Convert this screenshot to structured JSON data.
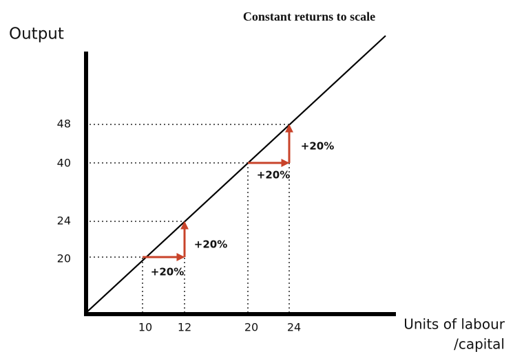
{
  "header": {
    "title": "Constant returns to scale"
  },
  "axes": {
    "y_label": "Output",
    "x_label": [
      "Units of labour",
      "/capital"
    ],
    "x_ticks": [
      10,
      12,
      20,
      24
    ],
    "y_ticks": [
      48,
      40,
      24,
      20
    ]
  },
  "annotations": [
    "+20%",
    "+20%",
    "+20%",
    "+20%"
  ]
}
